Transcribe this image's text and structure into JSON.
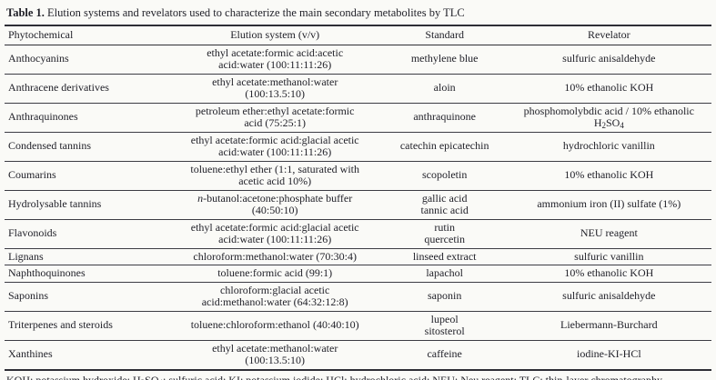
{
  "caption": {
    "label": "Table 1.",
    "text": " Elution systems and revelators used to characterize the main secondary metabolites by TLC"
  },
  "columns": [
    {
      "key": "phytochemical",
      "label": "Phytochemical"
    },
    {
      "key": "elution",
      "label": "Elution system (v/v)"
    },
    {
      "key": "standard",
      "label": "Standard"
    },
    {
      "key": "revelator",
      "label": "Revelator"
    }
  ],
  "rows": [
    {
      "phytochemical": "Anthocyanins",
      "elution": "ethyl acetate:formic acid:acetic\nacid:water (100:11:11:26)",
      "standard": "methylene blue",
      "revelator": "sulfuric anisaldehyde"
    },
    {
      "phytochemical": "Anthracene derivatives",
      "elution": "ethyl acetate:methanol:water\n(100:13.5:10)",
      "standard": "aloin",
      "revelator": "10% ethanolic KOH"
    },
    {
      "phytochemical": "Anthraquinones",
      "elution": "petroleum ether:ethyl acetate:formic\nacid (75:25:1)",
      "standard": "anthraquinone",
      "revelator": "phosphomolybdic acid / 10% ethanolic\nH~2~SO~4~"
    },
    {
      "phytochemical": "Condensed tannins",
      "elution": "ethyl acetate:formic acid:glacial acetic\nacid:water (100:11:11:26)",
      "standard": "catechin epicatechin",
      "revelator": "hydrochloric vanillin"
    },
    {
      "phytochemical": "Coumarins",
      "elution": "toluene:ethyl ether (1:1, saturated with\nacetic acid 10%)",
      "standard": "scopoletin",
      "revelator": "10% ethanolic KOH"
    },
    {
      "phytochemical": "Hydrolysable tannins",
      "elution": "*n*-butanol:acetone:phosphate buffer\n(40:50:10)",
      "standard": "gallic acid\ntannic acid",
      "revelator": "ammonium iron (II) sulfate (1%)"
    },
    {
      "phytochemical": "Flavonoids",
      "elution": "ethyl acetate:formic acid:glacial acetic\nacid:water (100:11:11:26)",
      "standard": "rutin\nquercetin",
      "revelator": "NEU reagent"
    },
    {
      "phytochemical": "Lignans",
      "elution": "chloroform:methanol:water (70:30:4)",
      "standard": "linseed extract",
      "revelator": "sulfuric vanillin"
    },
    {
      "phytochemical": "Naphthoquinones",
      "elution": "toluene:formic acid (99:1)",
      "standard": "lapachol",
      "revelator": "10% ethanolic KOH"
    },
    {
      "phytochemical": "Saponins",
      "elution": "chloroform:glacial acetic\nacid:methanol:water (64:32:12:8)",
      "standard": "saponin",
      "revelator": "sulfuric anisaldehyde"
    },
    {
      "phytochemical": "Triterpenes and steroids",
      "elution": "toluene:chloroform:ethanol (40:40:10)",
      "standard": "lupeol\nsitosterol",
      "revelator": "Liebermann-Burchard"
    },
    {
      "phytochemical": "Xanthines",
      "elution": "ethyl acetate:methanol:water\n(100:13.5:10)",
      "standard": "caffeine",
      "revelator": "iodine-KI-HCl"
    }
  ],
  "footnote": "KOH: potassium hydroxide; H~2~SO~4~: sulfuric acid; KI: potassium iodide; HCl: hydrochloric acid; NEU: Neu reagent; TLC: thin-layer chromatography.",
  "colors": {
    "background": "#fafaf7",
    "text": "#22222a",
    "rule": "#3c3c44"
  }
}
